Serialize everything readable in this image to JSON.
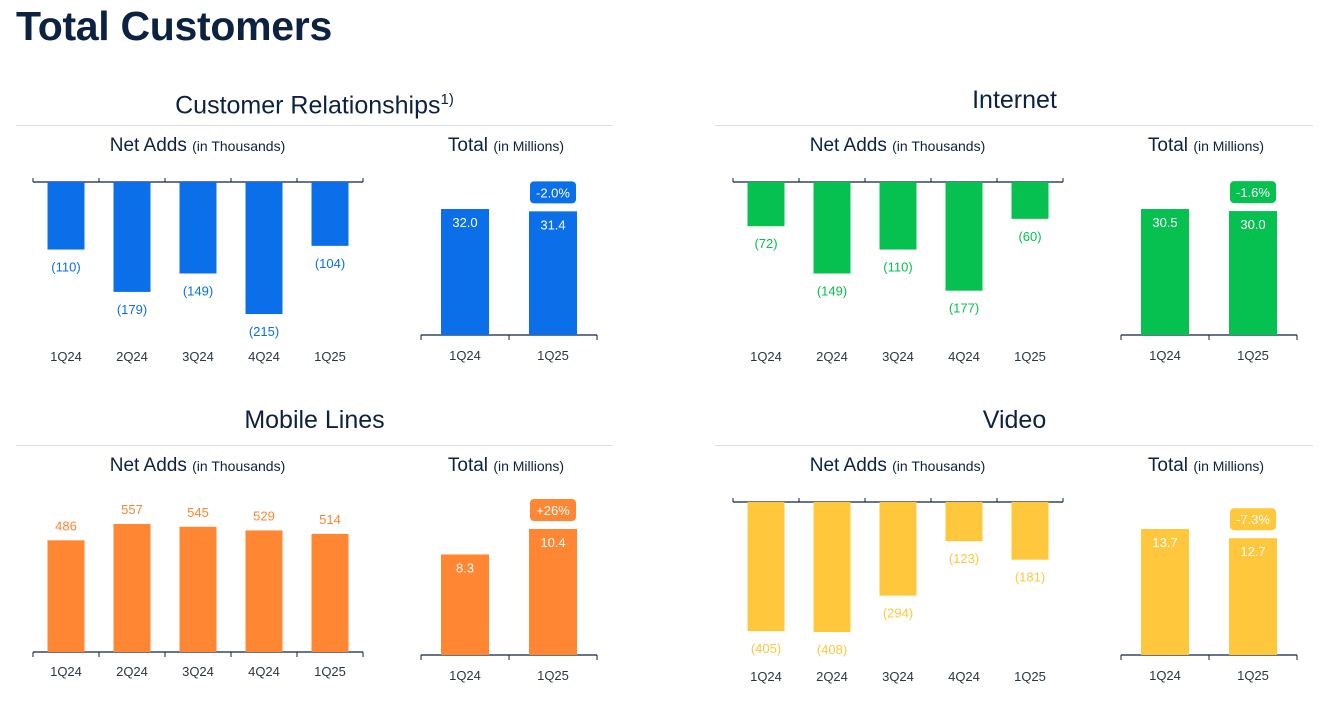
{
  "page": {
    "title": "Total Customers"
  },
  "chart_data": [
    {
      "type": "bar",
      "panel_title": "Customer Relationships",
      "panel_title_sup": "1)",
      "net_adds": {
        "title": "Net Adds",
        "unit": "(in Thousands)",
        "categories": [
          "1Q24",
          "2Q24",
          "3Q24",
          "4Q24",
          "1Q25"
        ],
        "values": [
          -110,
          -179,
          -149,
          -215,
          -104
        ],
        "labels": [
          "(110)",
          "(179)",
          "(149)",
          "(215)",
          "(104)"
        ]
      },
      "total": {
        "title": "Total",
        "unit": "(in Millions)",
        "categories": [
          "1Q24",
          "1Q25"
        ],
        "values": [
          32.0,
          31.4
        ],
        "labels": [
          "32.0",
          "31.4"
        ],
        "change_badge": "-2.0%"
      },
      "color": "#0a6fe8"
    },
    {
      "type": "bar",
      "panel_title": "Internet",
      "panel_title_sup": "",
      "net_adds": {
        "title": "Net Adds",
        "unit": "(in Thousands)",
        "categories": [
          "1Q24",
          "2Q24",
          "3Q24",
          "4Q24",
          "1Q25"
        ],
        "values": [
          -72,
          -149,
          -110,
          -177,
          -60
        ],
        "labels": [
          "(72)",
          "(149)",
          "(110)",
          "(177)",
          "(60)"
        ]
      },
      "total": {
        "title": "Total",
        "unit": "(in Millions)",
        "categories": [
          "1Q24",
          "1Q25"
        ],
        "values": [
          30.5,
          30.0
        ],
        "labels": [
          "30.5",
          "30.0"
        ],
        "change_badge": "-1.6%"
      },
      "color": "#06c050"
    },
    {
      "type": "bar",
      "panel_title": "Mobile Lines",
      "panel_title_sup": "",
      "net_adds": {
        "title": "Net Adds",
        "unit": "(in Thousands)",
        "categories": [
          "1Q24",
          "2Q24",
          "3Q24",
          "4Q24",
          "1Q25"
        ],
        "values": [
          486,
          557,
          545,
          529,
          514
        ],
        "labels": [
          "486",
          "557",
          "545",
          "529",
          "514"
        ]
      },
      "total": {
        "title": "Total",
        "unit": "(in Millions)",
        "categories": [
          "1Q24",
          "1Q25"
        ],
        "values": [
          8.3,
          10.4
        ],
        "labels": [
          "8.3",
          "10.4"
        ],
        "change_badge": "+26%"
      },
      "color": "#ff8633"
    },
    {
      "type": "bar",
      "panel_title": "Video",
      "panel_title_sup": "",
      "net_adds": {
        "title": "Net Adds",
        "unit": "(in Thousands)",
        "categories": [
          "1Q24",
          "2Q24",
          "3Q24",
          "4Q24",
          "1Q25"
        ],
        "values": [
          -405,
          -408,
          -294,
          -123,
          -181
        ],
        "labels": [
          "(405)",
          "(408)",
          "(294)",
          "(123)",
          "(181)"
        ]
      },
      "total": {
        "title": "Total",
        "unit": "(in Millions)",
        "categories": [
          "1Q24",
          "1Q25"
        ],
        "values": [
          13.7,
          12.7
        ],
        "labels": [
          "13.7",
          "12.7"
        ],
        "change_badge": "-7.3%"
      },
      "color": "#ffc83c"
    }
  ]
}
